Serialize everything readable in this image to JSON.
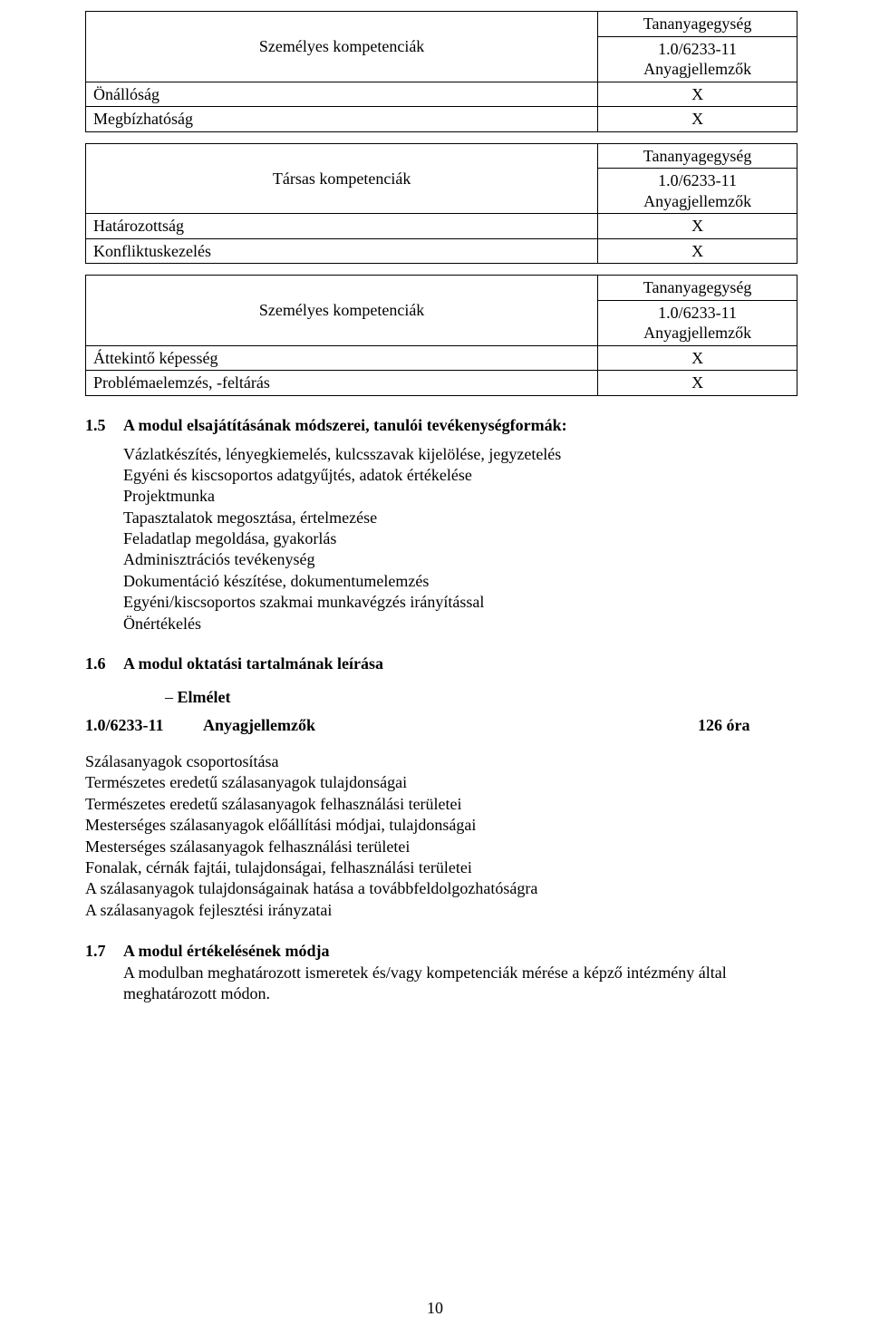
{
  "tables": {
    "t1": {
      "header_label": "Személyes kompetenciák",
      "unit_top": "Tananyagegység",
      "unit_code": "1.0/6233-11",
      "unit_sub": "Anyagjellemzők",
      "rows": [
        {
          "label": "Önállóság",
          "mark": "X"
        },
        {
          "label": "Megbízhatóság",
          "mark": "X"
        }
      ]
    },
    "t2": {
      "header_label": "Társas kompetenciák",
      "unit_top": "Tananyagegység",
      "unit_code": "1.0/6233-11",
      "unit_sub": "Anyagjellemzők",
      "rows": [
        {
          "label": "Határozottság",
          "mark": "X"
        },
        {
          "label": "Konfliktuskezelés",
          "mark": "X"
        }
      ]
    },
    "t3": {
      "header_label": "Személyes kompetenciák",
      "unit_top": "Tananyagegység",
      "unit_code": "1.0/6233-11",
      "unit_sub": "Anyagjellemzők",
      "rows": [
        {
          "label": "Áttekintő képesség",
          "mark": "X"
        },
        {
          "label": "Problémaelemzés, -feltárás",
          "mark": "X"
        }
      ]
    }
  },
  "sec15": {
    "num": "1.5",
    "title": "A modul elsajátításának módszerei, tanulói tevékenységformák:",
    "items": [
      "Vázlatkészítés, lényegkiemelés, kulcsszavak kijelölése, jegyzetelés",
      "Egyéni és kiscsoportos adatgyűjtés, adatok értékelése",
      "Projektmunka",
      "Tapasztalatok megosztása, értelmezése",
      "Feladatlap megoldása, gyakorlás",
      "Adminisztrációs tevékenység",
      "Dokumentáció készítése, dokumentumelemzés",
      "Egyéni/kiscsoportos szakmai munkavégzés irányítással",
      "Önértékelés"
    ]
  },
  "sec16": {
    "num": "1.6",
    "title": "A modul oktatási tartalmának leírása",
    "bullet": "Elmélet"
  },
  "modline": {
    "code": "1.0/6233-11",
    "title": "Anyagjellemzők",
    "hours": "126 óra"
  },
  "content_lines": [
    "Szálasanyagok csoportosítása",
    "Természetes eredetű szálasanyagok tulajdonságai",
    "Természetes eredetű szálasanyagok felhasználási területei",
    "Mesterséges szálasanyagok előállítási módjai, tulajdonságai",
    "Mesterséges szálasanyagok felhasználási területei",
    "Fonalak, cérnák fajtái, tulajdonságai, felhasználási területei",
    "A szálasanyagok tulajdonságainak hatása a továbbfeldolgozhatóságra",
    "A szálasanyagok fejlesztési irányzatai"
  ],
  "sec17": {
    "num": "1.7",
    "title": "A modul értékelésének módja",
    "body": "A modulban meghatározott ismeretek és/vagy kompetenciák mérése a képző intézmény által meghatározott módon."
  },
  "page_number": "10"
}
